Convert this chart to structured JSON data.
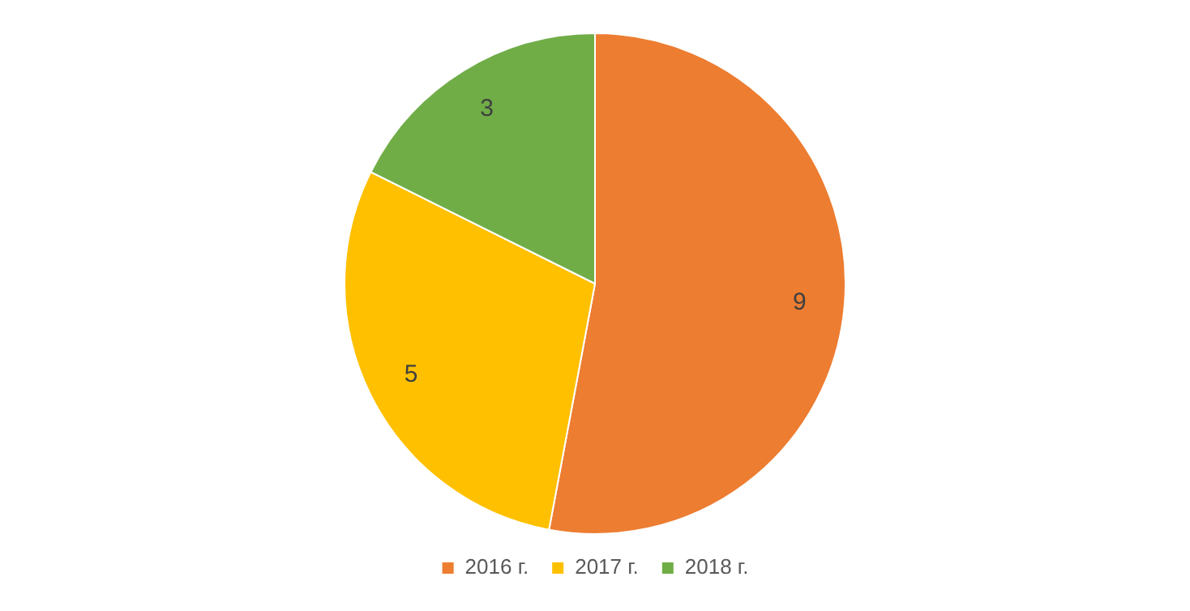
{
  "chart_data": {
    "type": "pie",
    "categories": [
      "2016 г.",
      "2017 г.",
      "2018 г."
    ],
    "values": [
      9,
      5,
      3
    ],
    "colors": [
      "#ed7d31",
      "#ffc000",
      "#70ad47"
    ],
    "data_labels": true,
    "legend": "bottom"
  }
}
